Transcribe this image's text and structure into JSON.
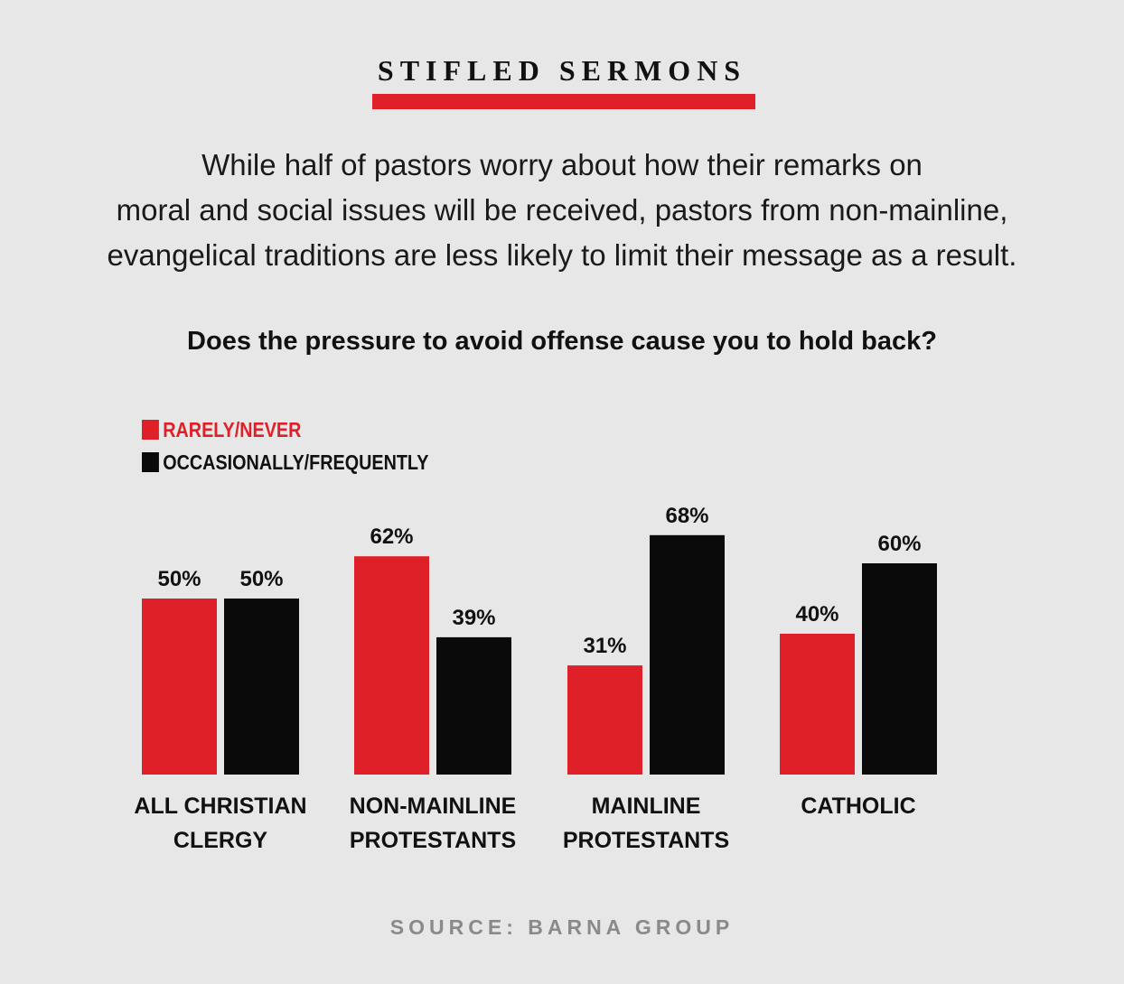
{
  "header": {
    "title": "STIFLED SERMONS",
    "subtitle_lines": [
      "While half of pastors worry about how their remarks on",
      "moral and social issues will be received, pastors from non-mainline,",
      "evangelical traditions are less likely to limit their message as a result."
    ],
    "question": "Does the pressure to avoid offense cause you to hold back?"
  },
  "colors": {
    "accent": "#e02028",
    "dark": "#0a0a0a",
    "background": "#e8e7e7",
    "source": "#8a8a8a"
  },
  "source": "SOURCE: BARNA GROUP",
  "chart_data": {
    "type": "bar",
    "categories": [
      [
        "ALL CHRISTIAN",
        "CLERGY"
      ],
      [
        "NON-MAINLINE",
        "PROTESTANTS"
      ],
      [
        "MAINLINE",
        "PROTESTANTS"
      ],
      [
        "CATHOLIC"
      ]
    ],
    "series": [
      {
        "name": "RARELY/NEVER",
        "color": "#e02028",
        "values": [
          50,
          62,
          31,
          40
        ]
      },
      {
        "name": "OCCASIONALLY/FREQUENTLY",
        "color": "#0a0a0a",
        "values": [
          50,
          39,
          68,
          60
        ]
      }
    ],
    "value_suffix": "%",
    "legend_position": "top-left",
    "grid": false,
    "ylim": [
      0,
      100
    ]
  }
}
